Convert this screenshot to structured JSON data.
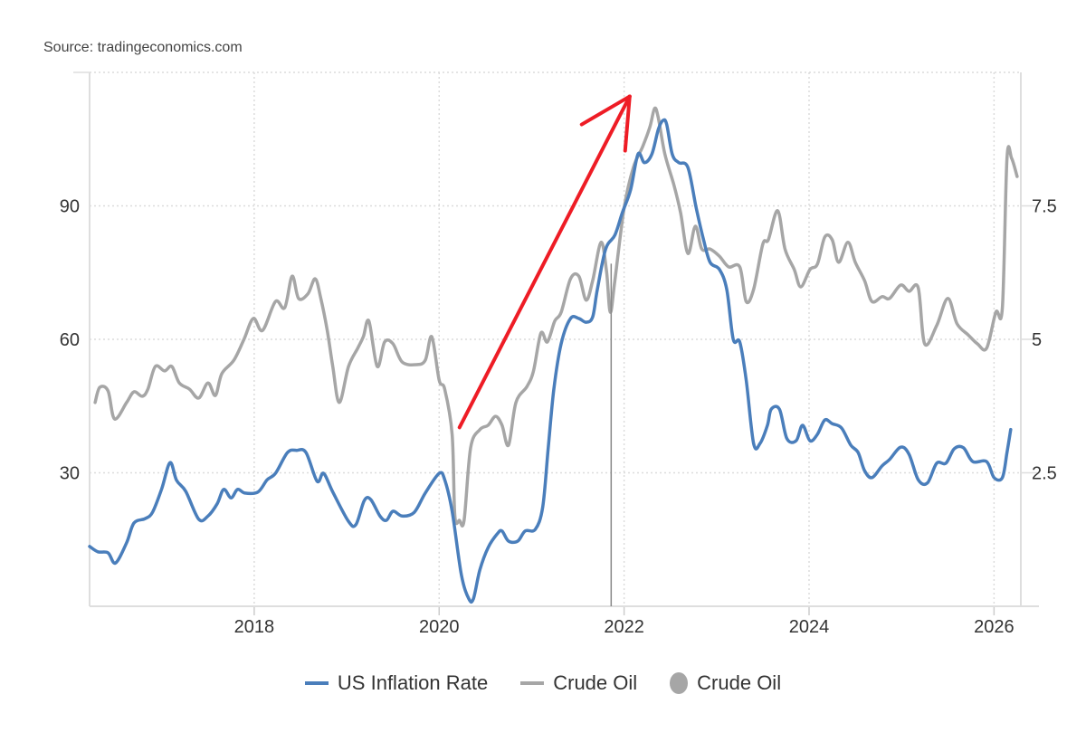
{
  "source": "Source: tradingeconomics.com",
  "chart_data": {
    "type": "line",
    "title": "",
    "x_ticks": [
      "2018",
      "2020",
      "2022",
      "2024",
      "2026"
    ],
    "x_tick_values": [
      2018,
      2020,
      2022,
      2024,
      2026
    ],
    "xlim": [
      2016.22,
      2026.29
    ],
    "y_left": {
      "ticks": [
        "30",
        "60",
        "90"
      ],
      "tick_values": [
        30,
        60,
        90
      ],
      "range": [
        0,
        120
      ]
    },
    "y_right": {
      "ticks": [
        "2.5",
        "5",
        "7.5"
      ],
      "tick_values": [
        2.5,
        5,
        7.5
      ],
      "range": [
        0,
        10
      ]
    },
    "grid": true,
    "legend_position": "bottom",
    "legend": [
      {
        "label": "US Inflation Rate",
        "marker": "line",
        "color": "#4a7ebb"
      },
      {
        "label": "Crude Oil",
        "marker": "line",
        "color": "#a6a6a6"
      },
      {
        "label": "Crude Oil",
        "marker": "dot",
        "color": "#a6a6a6"
      }
    ],
    "series": [
      {
        "name": "US Inflation Rate",
        "axis": "right",
        "color": "#4a7ebb",
        "points": [
          [
            2016.22,
            1.12
          ],
          [
            2016.31,
            1.02
          ],
          [
            2016.42,
            1.0
          ],
          [
            2016.5,
            0.81
          ],
          [
            2016.62,
            1.19
          ],
          [
            2016.7,
            1.56
          ],
          [
            2016.82,
            1.64
          ],
          [
            2016.9,
            1.76
          ],
          [
            2017.0,
            2.2
          ],
          [
            2017.09,
            2.69
          ],
          [
            2017.16,
            2.36
          ],
          [
            2017.26,
            2.15
          ],
          [
            2017.4,
            1.63
          ],
          [
            2017.5,
            1.69
          ],
          [
            2017.6,
            1.92
          ],
          [
            2017.67,
            2.19
          ],
          [
            2017.75,
            2.03
          ],
          [
            2017.82,
            2.19
          ],
          [
            2017.9,
            2.12
          ],
          [
            2018.04,
            2.14
          ],
          [
            2018.14,
            2.37
          ],
          [
            2018.23,
            2.49
          ],
          [
            2018.36,
            2.88
          ],
          [
            2018.46,
            2.92
          ],
          [
            2018.56,
            2.88
          ],
          [
            2018.68,
            2.34
          ],
          [
            2018.75,
            2.49
          ],
          [
            2018.85,
            2.14
          ],
          [
            2019.02,
            1.59
          ],
          [
            2019.1,
            1.53
          ],
          [
            2019.19,
            1.98
          ],
          [
            2019.26,
            2.0
          ],
          [
            2019.36,
            1.69
          ],
          [
            2019.43,
            1.61
          ],
          [
            2019.5,
            1.78
          ],
          [
            2019.6,
            1.69
          ],
          [
            2019.73,
            1.76
          ],
          [
            2019.85,
            2.12
          ],
          [
            2020.0,
            2.49
          ],
          [
            2020.06,
            2.37
          ],
          [
            2020.14,
            1.78
          ],
          [
            2020.24,
            0.59
          ],
          [
            2020.32,
            0.14
          ],
          [
            2020.37,
            0.14
          ],
          [
            2020.44,
            0.68
          ],
          [
            2020.53,
            1.1
          ],
          [
            2020.63,
            1.36
          ],
          [
            2020.68,
            1.41
          ],
          [
            2020.75,
            1.22
          ],
          [
            2020.85,
            1.22
          ],
          [
            2020.93,
            1.41
          ],
          [
            2021.04,
            1.44
          ],
          [
            2021.12,
            1.86
          ],
          [
            2021.18,
            2.97
          ],
          [
            2021.24,
            4.07
          ],
          [
            2021.32,
            4.92
          ],
          [
            2021.42,
            5.39
          ],
          [
            2021.51,
            5.39
          ],
          [
            2021.59,
            5.32
          ],
          [
            2021.66,
            5.42
          ],
          [
            2021.71,
            5.93
          ],
          [
            2021.8,
            6.69
          ],
          [
            2021.9,
            6.95
          ],
          [
            2021.98,
            7.37
          ],
          [
            2022.07,
            7.8
          ],
          [
            2022.15,
            8.47
          ],
          [
            2022.22,
            8.31
          ],
          [
            2022.3,
            8.47
          ],
          [
            2022.37,
            8.93
          ],
          [
            2022.42,
            9.1
          ],
          [
            2022.46,
            9.03
          ],
          [
            2022.52,
            8.47
          ],
          [
            2022.59,
            8.31
          ],
          [
            2022.69,
            8.22
          ],
          [
            2022.78,
            7.46
          ],
          [
            2022.86,
            6.86
          ],
          [
            2022.93,
            6.44
          ],
          [
            2023.03,
            6.31
          ],
          [
            2023.11,
            5.93
          ],
          [
            2023.18,
            5.0
          ],
          [
            2023.25,
            4.95
          ],
          [
            2023.32,
            4.24
          ],
          [
            2023.4,
            3.05
          ],
          [
            2023.47,
            3.05
          ],
          [
            2023.55,
            3.39
          ],
          [
            2023.59,
            3.69
          ],
          [
            2023.68,
            3.69
          ],
          [
            2023.76,
            3.14
          ],
          [
            2023.86,
            3.1
          ],
          [
            2023.93,
            3.39
          ],
          [
            2024.01,
            3.1
          ],
          [
            2024.09,
            3.22
          ],
          [
            2024.17,
            3.49
          ],
          [
            2024.25,
            3.42
          ],
          [
            2024.35,
            3.34
          ],
          [
            2024.45,
            3.02
          ],
          [
            2024.53,
            2.88
          ],
          [
            2024.6,
            2.54
          ],
          [
            2024.68,
            2.41
          ],
          [
            2024.79,
            2.63
          ],
          [
            2024.87,
            2.75
          ],
          [
            2024.99,
            2.98
          ],
          [
            2025.08,
            2.85
          ],
          [
            2025.18,
            2.37
          ],
          [
            2025.28,
            2.31
          ],
          [
            2025.38,
            2.68
          ],
          [
            2025.48,
            2.68
          ],
          [
            2025.57,
            2.95
          ],
          [
            2025.67,
            2.97
          ],
          [
            2025.77,
            2.71
          ],
          [
            2025.92,
            2.71
          ],
          [
            2026.0,
            2.41
          ],
          [
            2026.09,
            2.41
          ],
          [
            2026.14,
            2.88
          ],
          [
            2026.18,
            3.31
          ]
        ]
      },
      {
        "name": "Crude Oil",
        "axis": "left",
        "color": "#a6a6a6",
        "points": [
          [
            2016.28,
            45.8
          ],
          [
            2016.33,
            49.2
          ],
          [
            2016.42,
            48.4
          ],
          [
            2016.49,
            42.1
          ],
          [
            2016.62,
            45.8
          ],
          [
            2016.7,
            48.2
          ],
          [
            2016.79,
            47.2
          ],
          [
            2016.85,
            48.8
          ],
          [
            2016.93,
            53.9
          ],
          [
            2017.03,
            52.9
          ],
          [
            2017.11,
            53.9
          ],
          [
            2017.19,
            50.2
          ],
          [
            2017.3,
            48.8
          ],
          [
            2017.4,
            46.8
          ],
          [
            2017.5,
            50.2
          ],
          [
            2017.58,
            47.4
          ],
          [
            2017.65,
            52.3
          ],
          [
            2017.78,
            55.3
          ],
          [
            2017.89,
            60.0
          ],
          [
            2017.99,
            64.7
          ],
          [
            2018.09,
            62.0
          ],
          [
            2018.23,
            68.5
          ],
          [
            2018.33,
            67.1
          ],
          [
            2018.41,
            74.2
          ],
          [
            2018.48,
            69.2
          ],
          [
            2018.58,
            70.2
          ],
          [
            2018.66,
            73.6
          ],
          [
            2018.72,
            69.2
          ],
          [
            2018.79,
            62.0
          ],
          [
            2018.85,
            53.9
          ],
          [
            2018.92,
            45.8
          ],
          [
            2019.02,
            53.9
          ],
          [
            2019.12,
            58.0
          ],
          [
            2019.18,
            60.6
          ],
          [
            2019.24,
            64.1
          ],
          [
            2019.33,
            53.9
          ],
          [
            2019.41,
            59.4
          ],
          [
            2019.5,
            59.0
          ],
          [
            2019.6,
            54.9
          ],
          [
            2019.75,
            54.3
          ],
          [
            2019.85,
            55.3
          ],
          [
            2019.92,
            60.6
          ],
          [
            2020.0,
            50.8
          ],
          [
            2020.06,
            48.8
          ],
          [
            2020.14,
            38.6
          ],
          [
            2020.17,
            20.3
          ],
          [
            2020.22,
            19.3
          ],
          [
            2020.27,
            19.3
          ],
          [
            2020.34,
            35.6
          ],
          [
            2020.44,
            39.7
          ],
          [
            2020.53,
            40.7
          ],
          [
            2020.61,
            42.7
          ],
          [
            2020.68,
            40.7
          ],
          [
            2020.75,
            36.2
          ],
          [
            2020.83,
            45.8
          ],
          [
            2020.95,
            49.4
          ],
          [
            2021.02,
            52.9
          ],
          [
            2021.1,
            61.4
          ],
          [
            2021.17,
            59.4
          ],
          [
            2021.25,
            64.1
          ],
          [
            2021.32,
            66.1
          ],
          [
            2021.42,
            73.6
          ],
          [
            2021.51,
            74.2
          ],
          [
            2021.59,
            68.8
          ],
          [
            2021.66,
            73.2
          ],
          [
            2021.75,
            81.8
          ],
          [
            2021.81,
            75.3
          ],
          [
            2021.85,
            66.1
          ],
          [
            2021.9,
            73.2
          ],
          [
            2022.0,
            89.5
          ],
          [
            2022.1,
            98.6
          ],
          [
            2022.2,
            103.3
          ],
          [
            2022.28,
            107.8
          ],
          [
            2022.33,
            111.9
          ],
          [
            2022.37,
            109.8
          ],
          [
            2022.44,
            101.7
          ],
          [
            2022.54,
            94.6
          ],
          [
            2022.61,
            88.5
          ],
          [
            2022.69,
            79.3
          ],
          [
            2022.77,
            85.4
          ],
          [
            2022.84,
            80.3
          ],
          [
            2022.93,
            80.3
          ],
          [
            2023.03,
            78.7
          ],
          [
            2023.13,
            76.3
          ],
          [
            2023.25,
            76.3
          ],
          [
            2023.32,
            68.5
          ],
          [
            2023.4,
            71.2
          ],
          [
            2023.5,
            81.4
          ],
          [
            2023.56,
            82.4
          ],
          [
            2023.66,
            88.9
          ],
          [
            2023.74,
            80.3
          ],
          [
            2023.84,
            75.7
          ],
          [
            2023.91,
            71.8
          ],
          [
            2024.01,
            75.7
          ],
          [
            2024.09,
            76.9
          ],
          [
            2024.17,
            83.0
          ],
          [
            2024.25,
            82.4
          ],
          [
            2024.32,
            77.3
          ],
          [
            2024.42,
            81.8
          ],
          [
            2024.5,
            77.3
          ],
          [
            2024.6,
            73.2
          ],
          [
            2024.68,
            68.5
          ],
          [
            2024.79,
            69.6
          ],
          [
            2024.87,
            69.2
          ],
          [
            2024.99,
            72.2
          ],
          [
            2025.08,
            70.8
          ],
          [
            2025.18,
            71.6
          ],
          [
            2025.25,
            59.0
          ],
          [
            2025.38,
            63.1
          ],
          [
            2025.5,
            69.2
          ],
          [
            2025.6,
            63.5
          ],
          [
            2025.72,
            61.0
          ],
          [
            2025.82,
            59.0
          ],
          [
            2025.92,
            58.0
          ],
          [
            2026.02,
            66.1
          ],
          [
            2026.09,
            67.1
          ],
          [
            2026.14,
            100.7
          ],
          [
            2026.19,
            100.7
          ],
          [
            2026.25,
            96.6
          ]
        ]
      }
    ],
    "annotations": [
      {
        "type": "arrow",
        "color": "#ee1c25",
        "from": [
          2020.22,
          40.2
        ],
        "to": [
          2022.06,
          114.6
        ]
      },
      {
        "type": "vertical-line",
        "color": "#888888",
        "x": 2021.86,
        "from_value": 77,
        "to_value": 0
      }
    ]
  }
}
